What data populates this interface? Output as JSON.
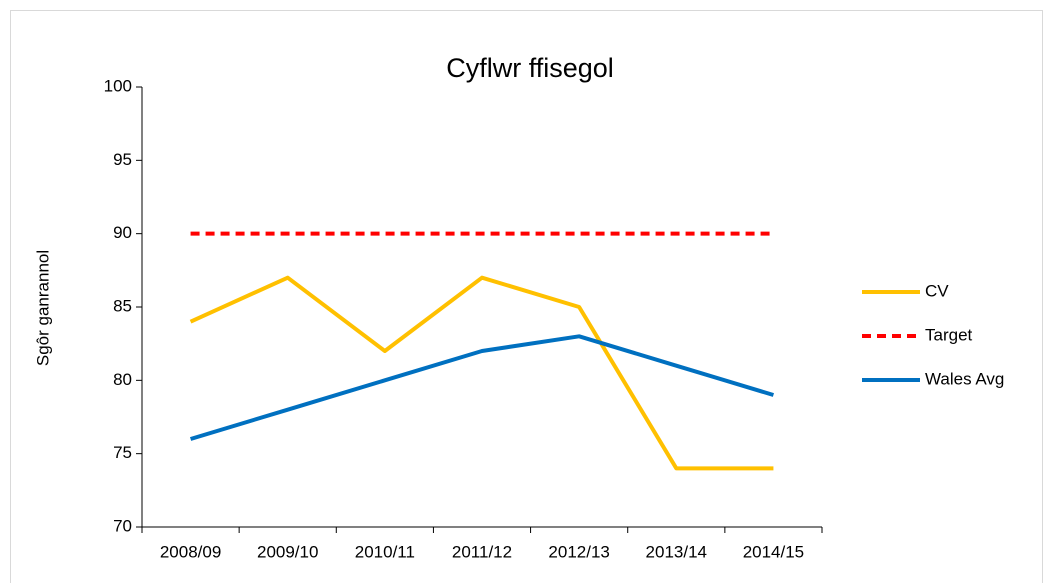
{
  "chart_data": {
    "type": "line",
    "title": "Cyflwr ffisegol",
    "y_label": "Sgôr ganrannol",
    "categories": [
      "2008/09",
      "2009/10",
      "2010/11",
      "2011/12",
      "2012/13",
      "2013/14",
      "2014/15"
    ],
    "series": [
      {
        "name": "CV",
        "color": "#ffc000",
        "dash": false,
        "values": [
          84,
          87,
          82,
          87,
          85,
          74,
          74
        ]
      },
      {
        "name": "Target",
        "color": "#ff0000",
        "dash": true,
        "values": [
          90,
          90,
          90,
          90,
          90,
          90,
          90
        ]
      },
      {
        "name": "Wales Avg",
        "color": "#0070c0",
        "dash": false,
        "values": [
          76,
          78,
          80,
          82,
          83,
          81,
          79
        ]
      }
    ],
    "ylim": [
      70,
      100
    ],
    "yticks": [
      70,
      75,
      80,
      85,
      90,
      95,
      100
    ],
    "grid": false,
    "legend": "right"
  }
}
